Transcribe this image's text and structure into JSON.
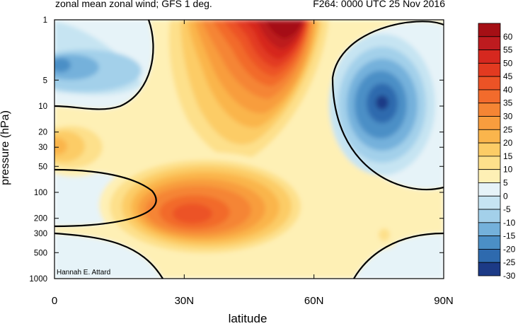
{
  "header": {
    "title_left": "zonal mean zonal wind; GFS 1 deg.",
    "title_right": "F264: 0000 UTC 25 Nov 2016",
    "credit": "Hannah E. Attard"
  },
  "colors": {
    "levels": [
      {
        "label": "60",
        "color": "#a50f15"
      },
      {
        "label": "55",
        "color": "#bd1b1f"
      },
      {
        "label": "50",
        "color": "#d6281f"
      },
      {
        "label": "45",
        "color": "#e23a20"
      },
      {
        "label": "40",
        "color": "#ec5326"
      },
      {
        "label": "35",
        "color": "#f26b2c"
      },
      {
        "label": "30",
        "color": "#f58534"
      },
      {
        "label": "25",
        "color": "#f89d3e"
      },
      {
        "label": "20",
        "color": "#fab54c"
      },
      {
        "label": "15",
        "color": "#fccc66"
      },
      {
        "label": "10",
        "color": "#fde08b"
      },
      {
        "label": "5",
        "color": "#fef0b5"
      },
      {
        "label": "0",
        "color": "#e6f3f8"
      },
      {
        "label": "-5",
        "color": "#c6e4f2"
      },
      {
        "label": "-10",
        "color": "#a3d0ea"
      },
      {
        "label": "-15",
        "color": "#74b1db"
      },
      {
        "label": "-20",
        "color": "#4b8fc6"
      },
      {
        "label": "-25",
        "color": "#2e6aae"
      },
      {
        "label": "-30",
        "color": "#1c3a86"
      }
    ]
  },
  "chart_data": {
    "type": "heatmap",
    "title": "zonal mean zonal wind; GFS 1 deg.",
    "subtitle": "F264: 0000 UTC 25 Nov 2016",
    "xlabel": "latitude",
    "ylabel": "pressure (hPa)",
    "x_ticks": [
      "0",
      "30N",
      "60N",
      "90N"
    ],
    "x_range": [
      0,
      90
    ],
    "y_ticks": [
      "1",
      "5",
      "10",
      "20",
      "30",
      "50",
      "100",
      "200",
      "300",
      "500",
      "1000"
    ],
    "y_range": [
      1000,
      1
    ],
    "y_scale": "log",
    "legend": "right colorbar",
    "contour_interval": 5,
    "features": [
      {
        "lat": 50,
        "p": 1.5,
        "value": 60
      },
      {
        "lat": 32,
        "p": 200,
        "value": 40
      },
      {
        "lat": 75,
        "p": 10,
        "value": -30
      },
      {
        "lat": 2,
        "p": 5,
        "value": -20
      },
      {
        "lat": 0,
        "p": 30,
        "value": 20
      },
      {
        "lat": 77,
        "p": 300,
        "value": 10
      }
    ]
  }
}
